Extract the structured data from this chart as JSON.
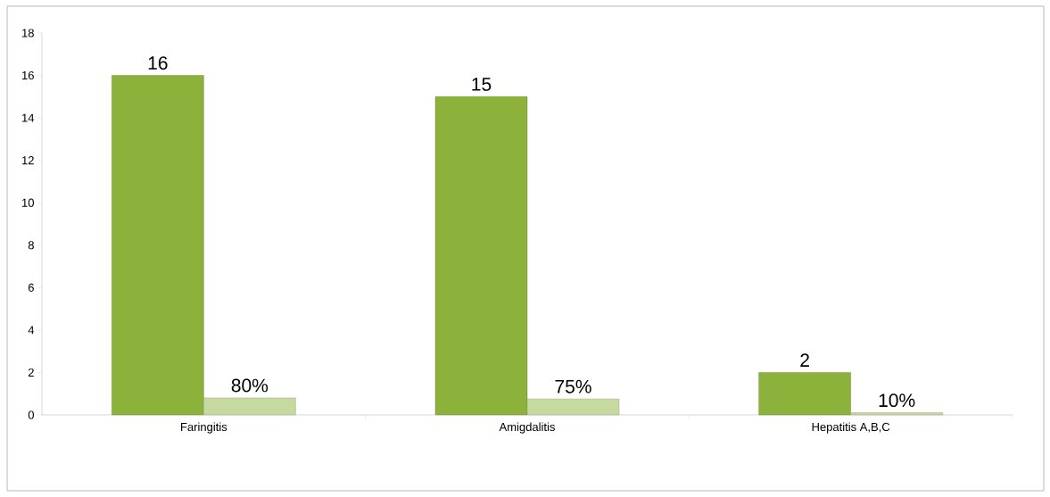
{
  "chart_data": {
    "type": "bar",
    "categories": [
      "Faringitis",
      "Amigdalitis",
      "Hepatitis A,B,C"
    ],
    "series": [
      {
        "color": "#8cb23c",
        "values": [
          16,
          15,
          2
        ],
        "value_labels": [
          "16",
          "15",
          "2"
        ]
      },
      {
        "color": "#c6d99e",
        "values": [
          0.8,
          0.75,
          0.1
        ],
        "value_labels": [
          "80%",
          "75%",
          "10%"
        ]
      }
    ],
    "ylim": [
      0,
      18
    ],
    "yticks": [
      0,
      2,
      4,
      6,
      8,
      10,
      12,
      14,
      16,
      18
    ],
    "grid": false
  }
}
